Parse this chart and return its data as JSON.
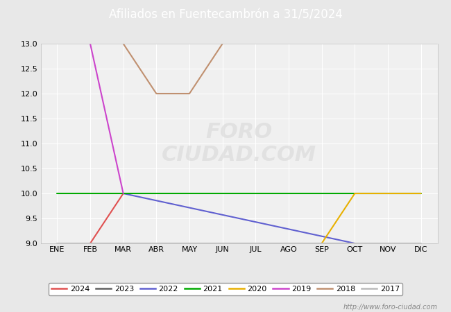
{
  "title": "Afiliados en Fuentecambrón a 31/5/2024",
  "title_color": "#333333",
  "title_bg": "#4a86c8",
  "months": [
    "ENE",
    "FEB",
    "MAR",
    "ABR",
    "MAY",
    "JUN",
    "JUL",
    "AGO",
    "SEP",
    "OCT",
    "NOV",
    "DIC"
  ],
  "month_indices": [
    1,
    2,
    3,
    4,
    5,
    6,
    7,
    8,
    9,
    10,
    11,
    12
  ],
  "ylim": [
    9.0,
    13.0
  ],
  "yticks": [
    9.0,
    9.5,
    10.0,
    10.5,
    11.0,
    11.5,
    12.0,
    12.5,
    13.0
  ],
  "series": {
    "2024": {
      "color": "#e05050",
      "data": [
        [
          2,
          9
        ],
        [
          3,
          10
        ]
      ]
    },
    "2023": {
      "color": "#606060",
      "data": []
    },
    "2022": {
      "color": "#6060d0",
      "data": [
        [
          3,
          10
        ],
        [
          10,
          9
        ]
      ]
    },
    "2021": {
      "color": "#00aa00",
      "data": [
        [
          1,
          10
        ],
        [
          12,
          10
        ]
      ]
    },
    "2020": {
      "color": "#e8b000",
      "data": [
        [
          9,
          9
        ],
        [
          10,
          10
        ],
        [
          11,
          10
        ],
        [
          12,
          10
        ]
      ]
    },
    "2019": {
      "color": "#cc44cc",
      "data": [
        [
          2,
          13
        ],
        [
          3,
          10
        ]
      ]
    },
    "2018": {
      "color": "#c09070",
      "data": [
        [
          3,
          13
        ],
        [
          4,
          12
        ],
        [
          5,
          12
        ],
        [
          6,
          13
        ]
      ]
    },
    "2017": {
      "color": "#bbbbbb",
      "data": [
        [
          1,
          9
        ],
        [
          12,
          9
        ]
      ]
    }
  },
  "legend_order": [
    "2024",
    "2023",
    "2022",
    "2021",
    "2020",
    "2019",
    "2018",
    "2017"
  ],
  "watermark": "http://www.foro-ciudad.com",
  "bg_color": "#e8e8e8",
  "plot_bg": "#f0f0f0",
  "grid_color": "#ffffff",
  "foro_text": "FORO\nCIUDAD.COM",
  "foro_color": "#d8d8d8",
  "foro_alpha": 0.6
}
